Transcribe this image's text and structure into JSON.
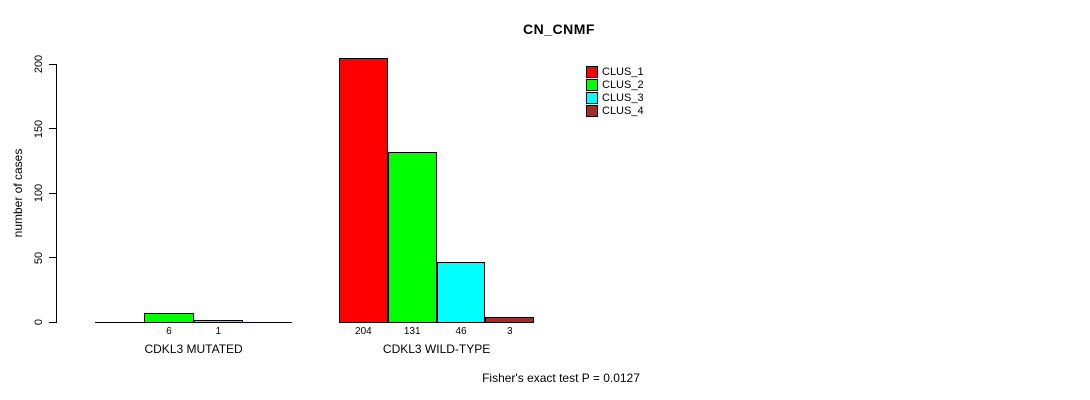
{
  "title": "CN_CNMF",
  "ylabel": "number of cases",
  "footer": "Fisher's exact test P = 0.0127",
  "legend": [
    {
      "label": "CLUS_1",
      "color": "#FF0000"
    },
    {
      "label": "CLUS_2",
      "color": "#00FF00"
    },
    {
      "label": "CLUS_3",
      "color": "#00FFFF"
    },
    {
      "label": "CLUS_4",
      "color": "#A52A2A"
    }
  ],
  "chart_data": {
    "type": "bar",
    "title": "CN_CNMF",
    "ylabel": "number of cases",
    "xlabel": "",
    "ylim": [
      0,
      200
    ],
    "yticks": [
      0,
      50,
      100,
      150,
      200
    ],
    "categories": [
      "CDKL3 MUTATED",
      "CDKL3 WILD-TYPE"
    ],
    "series": [
      {
        "name": "CLUS_1",
        "color": "#FF0000",
        "values": [
          0,
          204
        ]
      },
      {
        "name": "CLUS_2",
        "color": "#00FF00",
        "values": [
          6,
          131
        ]
      },
      {
        "name": "CLUS_3",
        "color": "#00FFFF",
        "values": [
          1,
          46
        ]
      },
      {
        "name": "CLUS_4",
        "color": "#A52A2A",
        "values": [
          0,
          3
        ]
      }
    ],
    "bar_value_labels": {
      "CDKL3 MUTATED": [
        null,
        6,
        1,
        null
      ],
      "CDKL3 WILD-TYPE": [
        204,
        131,
        46,
        3
      ]
    },
    "annotation": "Fisher's exact test P = 0.0127",
    "legend_position": "top-right",
    "grid": false
  }
}
